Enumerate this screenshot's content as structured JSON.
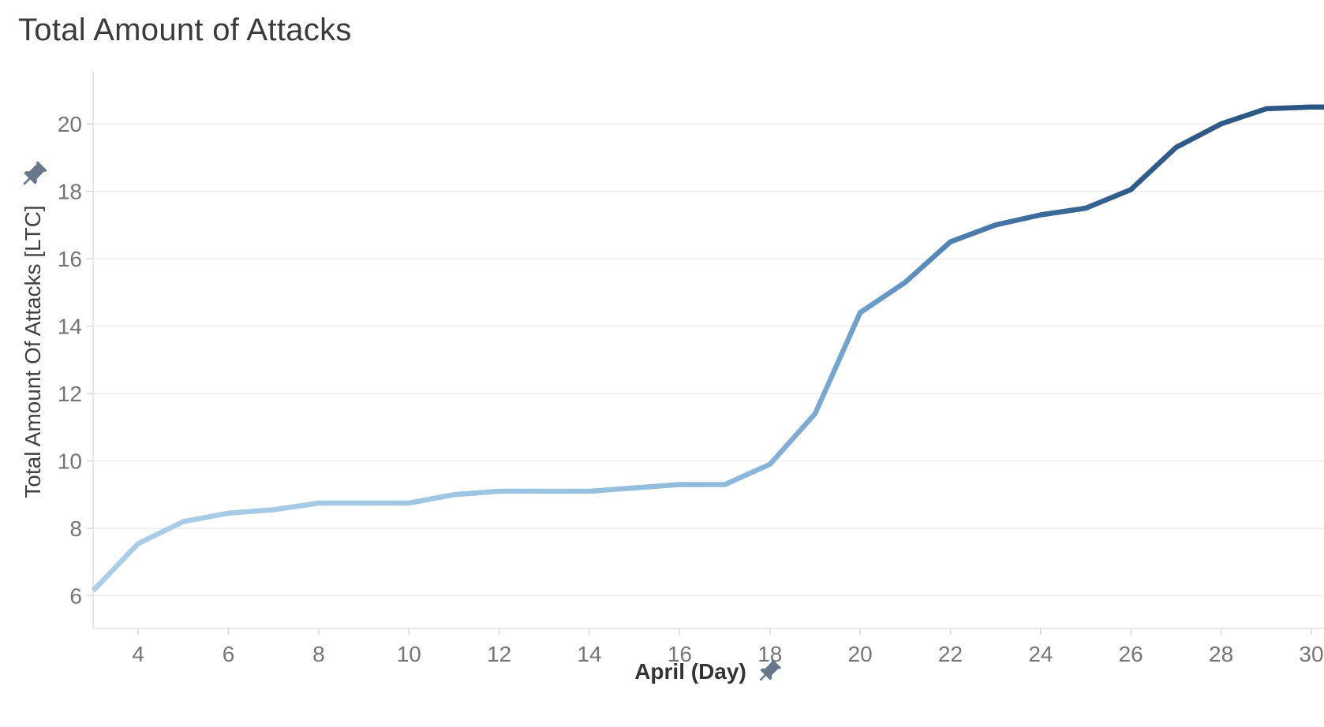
{
  "page_title": "Total Amount of Attacks",
  "colors": {
    "background": "#ffffff",
    "title_text": "#3b3b3b",
    "axis_title_text": "#333333",
    "y_axis_title_text": "#414141",
    "tick_text": "#757575",
    "gridline": "#ececec",
    "axis_line": "#e0e0e0",
    "tick_mark": "#d9d9d9",
    "pin": "#66788a",
    "line_start_color": "#abcfe8",
    "line_end_color": "#2a5481",
    "line_gradient": [
      {
        "offset": 0.0,
        "color": "#abcfe8"
      },
      {
        "offset": 0.38,
        "color": "#9ac2e1"
      },
      {
        "offset": 0.52,
        "color": "#8db9dc"
      },
      {
        "offset": 0.575,
        "color": "#80acd3"
      },
      {
        "offset": 0.625,
        "color": "#6da0cc"
      },
      {
        "offset": 0.665,
        "color": "#5d8fc0"
      },
      {
        "offset": 0.71,
        "color": "#4b7dac"
      },
      {
        "offset": 0.765,
        "color": "#3c6c9b"
      },
      {
        "offset": 0.84,
        "color": "#305e8c"
      },
      {
        "offset": 1.0,
        "color": "#2a5481"
      }
    ]
  },
  "icons": {
    "y_axis_pin": "pushpin-icon",
    "x_axis_pin": "pushpin-icon"
  },
  "chart_data": {
    "type": "line",
    "title": "Total Amount of Attacks",
    "xlabel": "April (Day)",
    "ylabel": "Total Amount Of Attacks [LTC]",
    "series_name": "Total Amount of Attacks [LTC]",
    "x": [
      3,
      4,
      5,
      6,
      7,
      8,
      9,
      10,
      11,
      12,
      13,
      14,
      15,
      16,
      17,
      18,
      19,
      20,
      21,
      22,
      23,
      24,
      25,
      26,
      27,
      28,
      29,
      30
    ],
    "values": [
      6.15,
      7.55,
      8.2,
      8.45,
      8.55,
      8.75,
      8.75,
      8.75,
      9.0,
      9.1,
      9.1,
      9.1,
      9.2,
      9.3,
      9.3,
      9.9,
      11.4,
      14.4,
      15.3,
      16.5,
      17.0,
      17.3,
      17.5,
      18.05,
      19.3,
      20.0,
      20.45,
      20.5
    ],
    "xlim": [
      3,
      30.28
    ],
    "ylim": [
      5.03,
      21.57
    ],
    "x_ticks": [
      4,
      6,
      8,
      10,
      12,
      14,
      16,
      18,
      20,
      22,
      24,
      26,
      28,
      30
    ],
    "y_ticks": [
      6,
      8,
      10,
      12,
      14,
      16,
      18,
      20
    ],
    "grid": "horizontal-only",
    "legend_position": "none",
    "line_width": 6.5,
    "color_encoding": "sequential blue gradient; line darkens from light blue (early April, low values) to dark navy (late April, high values)",
    "extend_line_to_right_edge": true
  }
}
